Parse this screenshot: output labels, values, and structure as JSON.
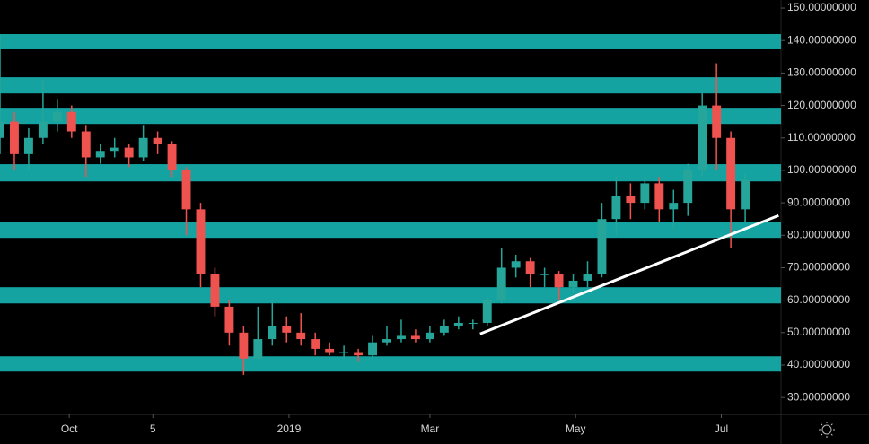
{
  "chart_data": {
    "type": "candlestick",
    "x": [
      1,
      7,
      13,
      19,
      25,
      31,
      37,
      43,
      49,
      55,
      61,
      67,
      73,
      79,
      85,
      91,
      97,
      103,
      109,
      115,
      121,
      127,
      133,
      139,
      145,
      151,
      157,
      163,
      169,
      175,
      181,
      187,
      193,
      199,
      205,
      211,
      217,
      223,
      229,
      235,
      241,
      247,
      253,
      259,
      265,
      271,
      277,
      283,
      289,
      295,
      301,
      307,
      313
    ],
    "open": [
      110,
      115,
      105,
      110,
      115,
      118,
      112,
      104,
      106,
      107,
      104,
      110,
      108,
      100,
      88,
      68,
      58,
      50,
      42,
      48,
      52,
      50,
      48,
      45,
      44,
      44,
      43,
      47,
      48,
      49,
      48,
      50,
      52,
      53,
      53,
      60,
      70,
      72,
      68,
      68,
      64,
      66,
      68,
      85,
      92,
      90,
      96,
      88,
      90,
      100,
      120,
      110,
      88
    ],
    "high": [
      142,
      118,
      113,
      128,
      122,
      120,
      114,
      108,
      110,
      108,
      114,
      112,
      109,
      101,
      90,
      70,
      60,
      52,
      58,
      60,
      55,
      56,
      50,
      47,
      46,
      45,
      49,
      52,
      54,
      51,
      52,
      54,
      55,
      54,
      62,
      76,
      74,
      73,
      70,
      69,
      68,
      72,
      90,
      98,
      96,
      99,
      98,
      94,
      102,
      124,
      133,
      112,
      99
    ],
    "low": [
      105,
      100,
      100,
      108,
      112,
      110,
      98,
      102,
      104,
      101,
      103,
      105,
      98,
      80,
      64,
      55,
      46,
      37,
      41,
      46,
      47,
      46,
      43,
      43,
      42,
      41,
      42,
      46,
      47,
      47,
      47,
      49,
      51,
      51,
      52,
      59,
      67,
      64,
      64,
      60,
      62,
      64,
      67,
      80,
      85,
      88,
      84,
      82,
      86,
      98,
      100,
      76,
      84
    ],
    "close": [
      115,
      105,
      110,
      115,
      118,
      112,
      104,
      106,
      107,
      104,
      110,
      108,
      100,
      88,
      68,
      58,
      50,
      42,
      48,
      52,
      50,
      48,
      45,
      44,
      44,
      43,
      47,
      48,
      49,
      48,
      50,
      52,
      53,
      53,
      60,
      70,
      72,
      68,
      68,
      64,
      66,
      68,
      85,
      92,
      90,
      96,
      88,
      90,
      100,
      120,
      110,
      88,
      97
    ],
    "up_color": "#26a69a",
    "down_color": "#ef5350",
    "zones": [
      [
        137.3,
        142
      ],
      [
        123.7,
        128.7
      ],
      [
        114.3,
        119.3
      ],
      [
        96.6,
        101.9
      ],
      [
        79.2,
        84.2
      ],
      [
        59,
        64
      ],
      [
        38,
        42.7
      ]
    ],
    "zone_color": "#14a3a1",
    "trendline": {
      "x": [
        202,
        327
      ],
      "y": [
        49.6,
        86.1
      ],
      "color": "#ffffff"
    },
    "xlim": [
      1,
      328
    ],
    "xticks": [
      {
        "value": 30,
        "label": "Oct"
      },
      {
        "value": 65,
        "label": "5"
      },
      {
        "value": 122,
        "label": "2019"
      },
      {
        "value": 181,
        "label": "Mar"
      },
      {
        "value": 242,
        "label": "May"
      },
      {
        "value": 303,
        "label": "Jul"
      }
    ],
    "ylim": [
      24.8,
      152.5
    ],
    "yticks": [
      {
        "value": 30,
        "label": "30.00000000"
      },
      {
        "value": 40,
        "label": "40.00000000"
      },
      {
        "value": 50,
        "label": "50.00000000"
      },
      {
        "value": 60,
        "label": "60.00000000"
      },
      {
        "value": 70,
        "label": "70.00000000"
      },
      {
        "value": 80,
        "label": "80.00000000"
      },
      {
        "value": 90,
        "label": "90.00000000"
      },
      {
        "value": 100,
        "label": "100.00000000"
      },
      {
        "value": 110,
        "label": "110.00000000"
      },
      {
        "value": 120,
        "label": "120.00000000"
      },
      {
        "value": 130,
        "label": "130.00000000"
      },
      {
        "value": 140,
        "label": "140.00000000"
      },
      {
        "value": 150,
        "label": "150.00000000"
      }
    ]
  }
}
